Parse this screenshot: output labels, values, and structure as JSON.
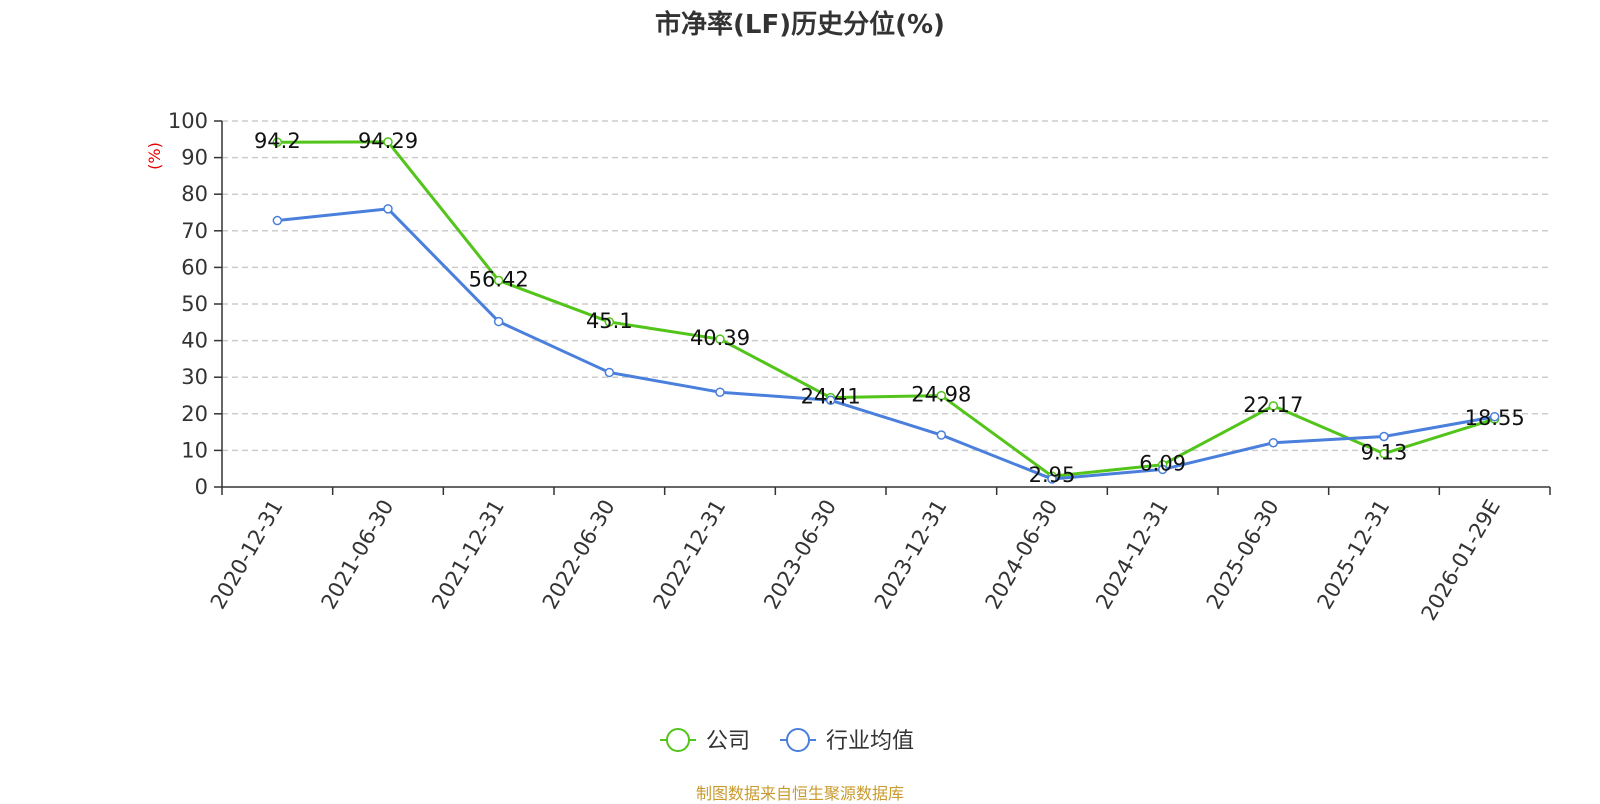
{
  "chart_data": {
    "type": "line",
    "title": "市净率(LF)历史分位(%)",
    "ylabel": "(%)",
    "xlabel": "",
    "ylim": [
      0,
      100
    ],
    "yticks": [
      0,
      10,
      20,
      30,
      40,
      50,
      60,
      70,
      80,
      90,
      100
    ],
    "grid": "horizontal-dashed",
    "legend_position": "bottom-center",
    "categories": [
      "2020-12-31",
      "2021-06-30",
      "2021-12-31",
      "2022-06-30",
      "2022-12-31",
      "2023-06-30",
      "2023-12-31",
      "2024-06-30",
      "2024-12-31",
      "2025-06-30",
      "2025-12-31",
      "2026-01-29E"
    ],
    "series": [
      {
        "name": "公司",
        "color": "#52c41a",
        "values": [
          94.2,
          94.29,
          56.42,
          45.1,
          40.39,
          24.41,
          24.98,
          2.95,
          6.09,
          22.17,
          9.13,
          18.55
        ],
        "data_labels": [
          "94.2",
          "94.29",
          "56.42",
          "45.1",
          "40.39",
          "24.41",
          "24.98",
          "2.95",
          "6.09",
          "22.17",
          "9.13",
          "18.55"
        ]
      },
      {
        "name": "行业均值",
        "color": "#4a7fdc",
        "values": [
          72.8,
          76.0,
          45.2,
          31.3,
          25.9,
          23.7,
          14.2,
          2.2,
          4.8,
          12.1,
          13.8,
          19.2
        ]
      }
    ]
  },
  "footer": {
    "source": "制图数据来自恒生聚源数据库"
  }
}
